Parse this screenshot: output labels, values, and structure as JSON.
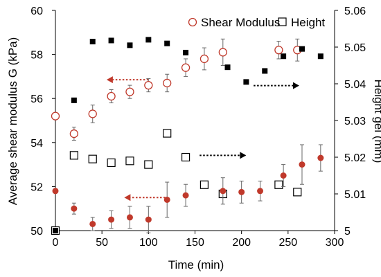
{
  "chart_data": {
    "type": "scatter",
    "xlabel": "Time (min)",
    "ylabel_left": "Average shear modulus G (kPa)",
    "ylabel_right": "Height gel (mm)",
    "xlim": [
      0,
      300
    ],
    "ylim_left": [
      50,
      60
    ],
    "ylim_right": [
      5.0,
      5.06
    ],
    "x_ticks": [
      "0",
      "50",
      "100",
      "150",
      "200",
      "250",
      "300"
    ],
    "y_left_ticks": [
      "50",
      "52",
      "54",
      "56",
      "58",
      "60"
    ],
    "y_right_ticks": [
      "5",
      "5.01",
      "5.02",
      "5.03",
      "5.04",
      "5.05",
      "5.06"
    ],
    "legend_position": "top-right",
    "series": [
      {
        "name": "Shear Modulus",
        "axis": "left",
        "marker": "open-circle",
        "color": "#c0392b",
        "x": [
          0,
          20,
          40,
          60,
          80,
          100,
          120,
          140,
          160,
          180,
          240,
          260
        ],
        "y": [
          55.2,
          54.4,
          55.3,
          56.1,
          56.3,
          56.6,
          56.7,
          57.4,
          57.8,
          58.1,
          58.2,
          58.2
        ],
        "err": [
          0.0,
          0.3,
          0.4,
          0.3,
          0.3,
          0.3,
          0.4,
          0.4,
          0.5,
          0.6,
          0.4,
          0.5
        ]
      },
      {
        "name": "Height",
        "axis": "right",
        "marker": "open-square",
        "color": "#000000",
        "x": [
          0,
          20,
          40,
          60,
          80,
          100,
          120,
          140,
          160,
          180,
          240,
          260
        ],
        "y": [
          5.0,
          5.0205,
          5.0195,
          5.0185,
          5.019,
          5.018,
          5.0265,
          5.02,
          5.0125,
          5.01,
          5.0125,
          5.0105
        ]
      },
      {
        "name": "",
        "axis": "left",
        "marker": "filled-circle",
        "color": "#c0392b",
        "x": [
          0,
          20,
          40,
          60,
          80,
          100,
          120,
          140,
          180,
          200,
          220,
          245,
          265,
          285
        ],
        "y": [
          51.8,
          51.0,
          50.3,
          50.5,
          50.6,
          50.5,
          51.4,
          51.6,
          51.8,
          51.75,
          51.8,
          52.5,
          53.0,
          53.3
        ],
        "err": [
          0.0,
          0.25,
          0.3,
          0.4,
          0.5,
          0.6,
          0.8,
          0.5,
          0.6,
          0.5,
          0.45,
          0.5,
          0.9,
          0.6
        ]
      },
      {
        "name": "",
        "axis": "right",
        "marker": "filled-square",
        "color": "#000000",
        "x": [
          0,
          20,
          40,
          60,
          80,
          100,
          120,
          140,
          185,
          205,
          225,
          245,
          265,
          285
        ],
        "y": [
          5.0,
          5.0355,
          5.0515,
          5.0518,
          5.0505,
          5.052,
          5.051,
          5.0485,
          5.0445,
          5.0405,
          5.0435,
          5.0475,
          5.0495,
          5.0475
        ]
      }
    ],
    "arrows": [
      {
        "direction": "left",
        "color": "#c0392b",
        "axis": "left",
        "x_from": 100,
        "x_to": 55,
        "y": 56.85
      },
      {
        "direction": "right",
        "color": "#000000",
        "axis": "right",
        "x_from": 213,
        "x_to": 262,
        "y": 5.0395
      },
      {
        "direction": "right",
        "color": "#000000",
        "axis": "right",
        "x_from": 155,
        "x_to": 205,
        "y": 5.0205
      },
      {
        "direction": "left",
        "color": "#c0392b",
        "axis": "left",
        "x_from": 118,
        "x_to": 74,
        "y": 51.5
      }
    ]
  }
}
